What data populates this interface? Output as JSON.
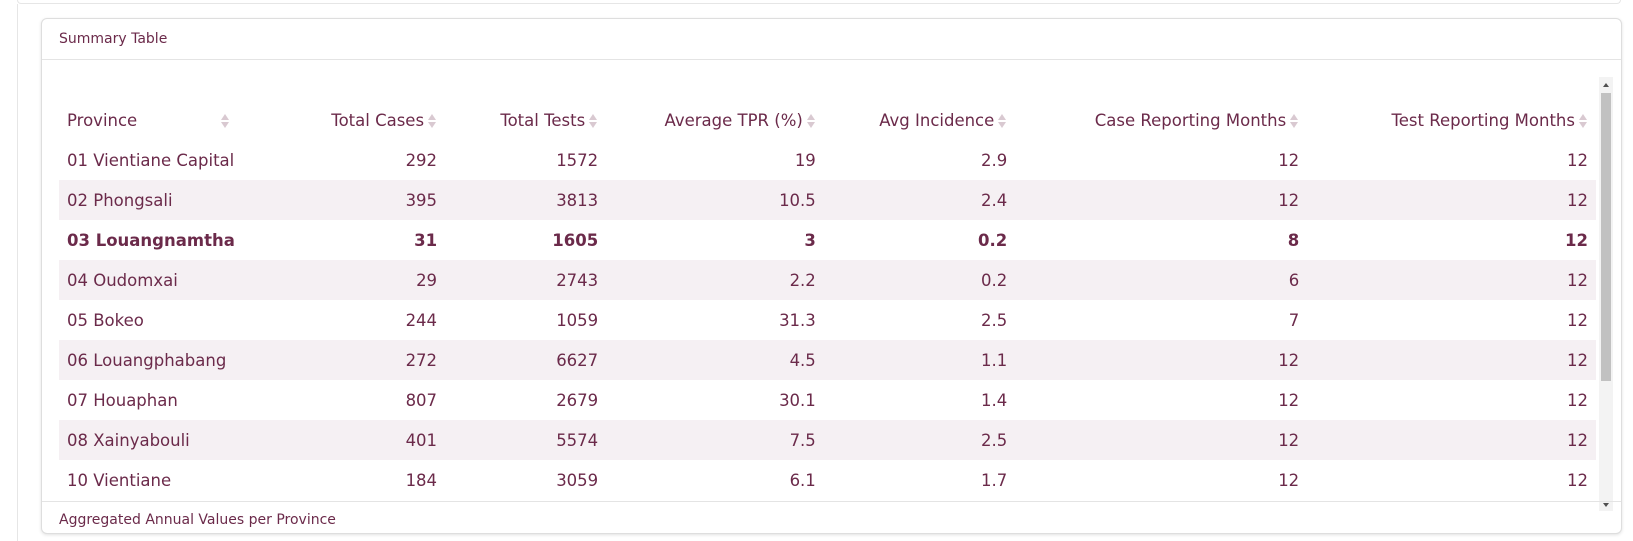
{
  "card": {
    "title": "Summary Table",
    "footer": "Aggregated Annual Values per Province"
  },
  "colors": {
    "text": "#6b2a4a",
    "stripe": "#f5f0f3",
    "sort_icon": "#d9c9d1"
  },
  "table": {
    "columns": [
      {
        "label": "Province",
        "sort_icon": "sort-icon"
      },
      {
        "label": "Total Cases",
        "sort_icon": "sort-icon"
      },
      {
        "label": "Total Tests",
        "sort_icon": "sort-icon"
      },
      {
        "label": "Average TPR (%)",
        "sort_icon": "sort-icon"
      },
      {
        "label": "Avg Incidence",
        "sort_icon": "sort-icon"
      },
      {
        "label": "Case Reporting Months",
        "sort_icon": "sort-icon"
      },
      {
        "label": "Test Reporting Months",
        "sort_icon": "sort-icon"
      }
    ],
    "rows": [
      {
        "province": "01 Vientiane Capital",
        "total_cases": "292",
        "total_tests": "1572",
        "avg_tpr": "19",
        "avg_incidence": "2.9",
        "case_months": "12",
        "test_months": "12",
        "bold": false
      },
      {
        "province": "02 Phongsali",
        "total_cases": "395",
        "total_tests": "3813",
        "avg_tpr": "10.5",
        "avg_incidence": "2.4",
        "case_months": "12",
        "test_months": "12",
        "bold": false
      },
      {
        "province": "03 Louangnamtha",
        "total_cases": "31",
        "total_tests": "1605",
        "avg_tpr": "3",
        "avg_incidence": "0.2",
        "case_months": "8",
        "test_months": "12",
        "bold": true
      },
      {
        "province": "04 Oudomxai",
        "total_cases": "29",
        "total_tests": "2743",
        "avg_tpr": "2.2",
        "avg_incidence": "0.2",
        "case_months": "6",
        "test_months": "12",
        "bold": false
      },
      {
        "province": "05 Bokeo",
        "total_cases": "244",
        "total_tests": "1059",
        "avg_tpr": "31.3",
        "avg_incidence": "2.5",
        "case_months": "7",
        "test_months": "12",
        "bold": false
      },
      {
        "province": "06 Louangphabang",
        "total_cases": "272",
        "total_tests": "6627",
        "avg_tpr": "4.5",
        "avg_incidence": "1.1",
        "case_months": "12",
        "test_months": "12",
        "bold": false
      },
      {
        "province": "07 Houaphan",
        "total_cases": "807",
        "total_tests": "2679",
        "avg_tpr": "30.1",
        "avg_incidence": "1.4",
        "case_months": "12",
        "test_months": "12",
        "bold": false
      },
      {
        "province": "08 Xainyabouli",
        "total_cases": "401",
        "total_tests": "5574",
        "avg_tpr": "7.5",
        "avg_incidence": "2.5",
        "case_months": "12",
        "test_months": "12",
        "bold": false
      },
      {
        "province": "10 Vientiane",
        "total_cases": "184",
        "total_tests": "3059",
        "avg_tpr": "6.1",
        "avg_incidence": "1.7",
        "case_months": "12",
        "test_months": "12",
        "bold": false
      }
    ]
  }
}
